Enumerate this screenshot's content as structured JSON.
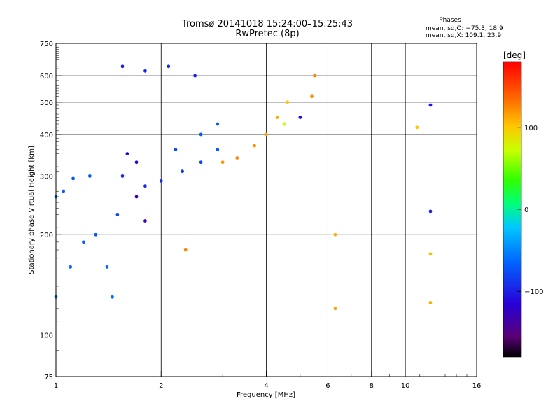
{
  "chart_data": {
    "type": "scatter",
    "title": "Tromsø 20141018 15:24:00–15:25:43",
    "subtitle": "RwPretec (8p)",
    "xlabel": "Frequency [MHz]",
    "ylabel": "Stationary phase Virtual Height [km]",
    "xscale": "log",
    "yscale": "log",
    "xlim": [
      1,
      16
    ],
    "ylim": [
      75,
      750
    ],
    "xticks": [
      1,
      2,
      4,
      6,
      8,
      10,
      16
    ],
    "xtick_labels": [
      "1",
      "2",
      "4",
      "6",
      "8",
      "10",
      "16"
    ],
    "x_gridlines": [
      2,
      4,
      6,
      8,
      10
    ],
    "yticks": [
      75,
      100,
      200,
      300,
      400,
      500,
      600,
      750
    ],
    "ytick_labels": [
      "75",
      "100",
      "200",
      "300",
      "400",
      "500",
      "600",
      "750"
    ],
    "y_gridlines": [
      100,
      200,
      300,
      400,
      500,
      600
    ],
    "grid": true,
    "stats": {
      "heading": "Phases",
      "line_o": "mean, sd,O: −75.3, 18.9",
      "line_x": "mean, sd,X: 109.1, 23.9"
    },
    "colorbar": {
      "label": "[deg]",
      "range": [
        -180,
        180
      ],
      "ticks": [
        "100",
        "0",
        "−100"
      ],
      "tick_values": [
        100,
        0,
        -100
      ],
      "colormap": "rainbow (black → purple → blue → cyan → green → yellow → orange → red)"
    },
    "traces": [
      {
        "x": 1.0,
        "y": 260,
        "phase": -70
      },
      {
        "x": 1.05,
        "y": 270,
        "phase": -68
      },
      {
        "x": 1.12,
        "y": 295,
        "phase": -70
      },
      {
        "x": 1.25,
        "y": 300,
        "phase": -72
      },
      {
        "x": 1.0,
        "y": 130,
        "phase": -60
      },
      {
        "x": 1.1,
        "y": 160,
        "phase": -65
      },
      {
        "x": 1.2,
        "y": 190,
        "phase": -68
      },
      {
        "x": 1.3,
        "y": 200,
        "phase": -72
      },
      {
        "x": 1.4,
        "y": 160,
        "phase": -62
      },
      {
        "x": 1.45,
        "y": 130,
        "phase": -60
      },
      {
        "x": 1.5,
        "y": 230,
        "phase": -80
      },
      {
        "x": 1.55,
        "y": 300,
        "phase": -95
      },
      {
        "x": 1.6,
        "y": 350,
        "phase": -110
      },
      {
        "x": 1.7,
        "y": 330,
        "phase": -115
      },
      {
        "x": 1.7,
        "y": 260,
        "phase": -120
      },
      {
        "x": 1.8,
        "y": 220,
        "phase": -130
      },
      {
        "x": 1.55,
        "y": 640,
        "phase": -100
      },
      {
        "x": 1.8,
        "y": 620,
        "phase": -95
      },
      {
        "x": 2.1,
        "y": 640,
        "phase": -90
      },
      {
        "x": 2.5,
        "y": 600,
        "phase": -100
      },
      {
        "x": 1.8,
        "y": 280,
        "phase": -95
      },
      {
        "x": 2.0,
        "y": 290,
        "phase": -92
      },
      {
        "x": 2.3,
        "y": 310,
        "phase": -85
      },
      {
        "x": 2.6,
        "y": 330,
        "phase": -80
      },
      {
        "x": 2.9,
        "y": 360,
        "phase": -70
      },
      {
        "x": 2.2,
        "y": 360,
        "phase": -75
      },
      {
        "x": 2.6,
        "y": 400,
        "phase": -70
      },
      {
        "x": 2.9,
        "y": 430,
        "phase": -65
      },
      {
        "x": 3.0,
        "y": 330,
        "phase": 120
      },
      {
        "x": 3.3,
        "y": 340,
        "phase": 125
      },
      {
        "x": 3.7,
        "y": 370,
        "phase": 120
      },
      {
        "x": 4.0,
        "y": 400,
        "phase": 115
      },
      {
        "x": 4.3,
        "y": 450,
        "phase": 110
      },
      {
        "x": 4.6,
        "y": 500,
        "phase": 100
      },
      {
        "x": 4.5,
        "y": 430,
        "phase": 70
      },
      {
        "x": 5.0,
        "y": 450,
        "phase": -110
      },
      {
        "x": 5.4,
        "y": 520,
        "phase": 120
      },
      {
        "x": 5.5,
        "y": 600,
        "phase": 125
      },
      {
        "x": 2.35,
        "y": 180,
        "phase": 125
      },
      {
        "x": 6.3,
        "y": 200,
        "phase": 110
      },
      {
        "x": 6.3,
        "y": 120,
        "phase": 115
      },
      {
        "x": 10.8,
        "y": 420,
        "phase": 100
      },
      {
        "x": 11.8,
        "y": 175,
        "phase": 105
      },
      {
        "x": 11.8,
        "y": 125,
        "phase": 110
      },
      {
        "x": 11.8,
        "y": 490,
        "phase": -105
      },
      {
        "x": 11.8,
        "y": 235,
        "phase": -100
      }
    ]
  }
}
